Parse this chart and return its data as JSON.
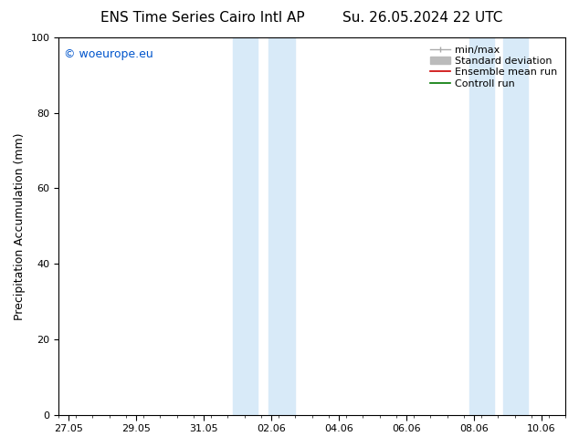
{
  "title_left": "ENS Time Series Cairo Intl AP",
  "title_right": "Su. 26.05.2024 22 UTC",
  "ylabel": "Precipitation Accumulation (mm)",
  "copyright_text": "© woeurope.eu",
  "copyright_color": "#0055cc",
  "ylim": [
    0,
    100
  ],
  "yticks": [
    0,
    20,
    40,
    60,
    80,
    100
  ],
  "background_color": "#ffffff",
  "plot_bg_color": "#ffffff",
  "x_start_date": "2024-05-27",
  "xtick_labels": [
    "27.05",
    "29.05",
    "31.05",
    "02.06",
    "04.06",
    "06.06",
    "08.06",
    "10.06"
  ],
  "xtick_positions_days": [
    0,
    2,
    4,
    6,
    8,
    10,
    12,
    14
  ],
  "xlim_days": [
    -0.3,
    14.7
  ],
  "shaded_band_color": "#d8eaf8",
  "shaded_bands": [
    [
      4.85,
      5.6
    ],
    [
      5.9,
      6.7
    ],
    [
      11.85,
      12.6
    ],
    [
      12.85,
      13.6
    ]
  ],
  "legend_entries": [
    {
      "label": "min/max",
      "color": "#aaaaaa",
      "lw": 1.0
    },
    {
      "label": "Standard deviation",
      "color": "#bbbbbb",
      "lw": 5
    },
    {
      "label": "Ensemble mean run",
      "color": "#cc0000",
      "lw": 1.2
    },
    {
      "label": "Controll run",
      "color": "#007700",
      "lw": 1.2
    }
  ],
  "title_fontsize": 11,
  "label_fontsize": 9,
  "tick_fontsize": 8,
  "legend_fontsize": 8
}
